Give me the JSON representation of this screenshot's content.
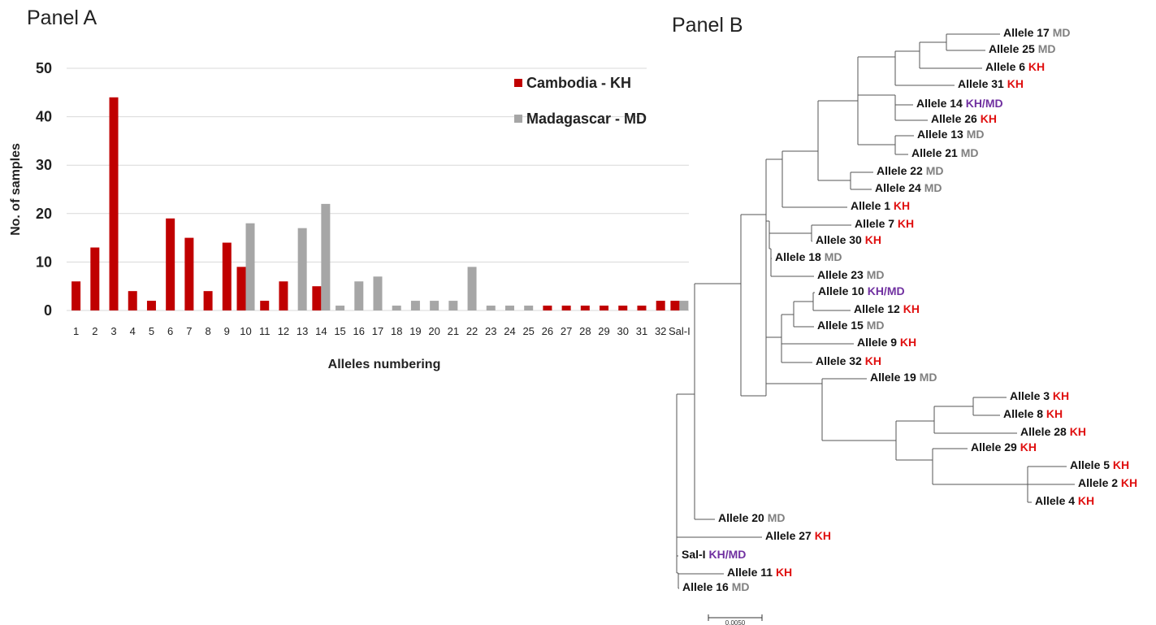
{
  "panel_a_title": "Panel A",
  "panel_b_title": "Panel B",
  "colors": {
    "KH": "#c00000",
    "MD": "#a6a6a6",
    "KHMD": "#7030a0",
    "label_KH": "#e01010",
    "label_MD": "#808080"
  },
  "chart_data": [
    {
      "type": "bar",
      "title": "",
      "xlabel": "Alleles numbering",
      "ylabel": "No. of samples",
      "ylim": [
        0,
        50
      ],
      "yticks": [
        0,
        10,
        20,
        30,
        40,
        50
      ],
      "grid": true,
      "legend_position": "top-right",
      "categories": [
        "1",
        "2",
        "3",
        "4",
        "5",
        "6",
        "7",
        "8",
        "9",
        "10",
        "11",
        "12",
        "13",
        "14",
        "15",
        "16",
        "17",
        "18",
        "19",
        "20",
        "21",
        "22",
        "23",
        "24",
        "25",
        "26",
        "27",
        "28",
        "29",
        "30",
        "31",
        "32",
        "Sal-I"
      ],
      "series": [
        {
          "name": "Cambodia - KH",
          "color": "#c00000",
          "values": [
            6,
            13,
            44,
            4,
            2,
            19,
            15,
            4,
            14,
            9,
            2,
            6,
            0,
            5,
            0,
            0,
            0,
            0,
            0,
            0,
            0,
            0,
            0,
            0,
            0,
            1,
            1,
            1,
            1,
            1,
            1,
            2,
            2
          ]
        },
        {
          "name": "Madagascar - MD",
          "color": "#a6a6a6",
          "values": [
            0,
            0,
            0,
            0,
            0,
            0,
            0,
            0,
            0,
            18,
            0,
            0,
            17,
            22,
            1,
            6,
            7,
            1,
            2,
            2,
            2,
            9,
            1,
            1,
            1,
            0,
            0,
            0,
            0,
            0,
            0,
            0,
            2
          ]
        }
      ]
    },
    {
      "type": "tree",
      "scale_label": "0.0050",
      "leaves": [
        {
          "name": "Allele 17",
          "tag": "MD"
        },
        {
          "name": "Allele 25",
          "tag": "MD"
        },
        {
          "name": "Allele 6",
          "tag": "KH"
        },
        {
          "name": "Allele 31",
          "tag": "KH"
        },
        {
          "name": "Allele 14",
          "tag": "KH/MD"
        },
        {
          "name": "Allele 26",
          "tag": "KH"
        },
        {
          "name": "Allele 13",
          "tag": "MD"
        },
        {
          "name": "Allele 21",
          "tag": "MD"
        },
        {
          "name": "Allele 22",
          "tag": "MD"
        },
        {
          "name": "Allele 24",
          "tag": "MD"
        },
        {
          "name": "Allele 1",
          "tag": "KH"
        },
        {
          "name": "Allele 7",
          "tag": "KH"
        },
        {
          "name": "Allele 30",
          "tag": "KH"
        },
        {
          "name": "Allele 18",
          "tag": "MD"
        },
        {
          "name": "Allele 23",
          "tag": "MD"
        },
        {
          "name": "Allele 10",
          "tag": "KH/MD"
        },
        {
          "name": "Allele 12",
          "tag": "KH"
        },
        {
          "name": "Allele 15",
          "tag": "MD"
        },
        {
          "name": "Allele 9",
          "tag": "KH"
        },
        {
          "name": "Allele 32",
          "tag": "KH"
        },
        {
          "name": "Allele 19",
          "tag": "MD"
        },
        {
          "name": "Allele 3",
          "tag": "KH"
        },
        {
          "name": "Allele 8",
          "tag": "KH"
        },
        {
          "name": "Allele 28",
          "tag": "KH"
        },
        {
          "name": "Allele 29",
          "tag": "KH"
        },
        {
          "name": "Allele 5",
          "tag": "KH"
        },
        {
          "name": "Allele 2",
          "tag": "KH"
        },
        {
          "name": "Allele 4",
          "tag": "KH"
        },
        {
          "name": "Allele 20",
          "tag": "MD"
        },
        {
          "name": "Allele 27",
          "tag": "KH"
        },
        {
          "name": "Sal-I",
          "tag": "KH/MD"
        },
        {
          "name": "Allele 11",
          "tag": "KH"
        },
        {
          "name": "Allele 16",
          "tag": "MD"
        }
      ]
    }
  ]
}
